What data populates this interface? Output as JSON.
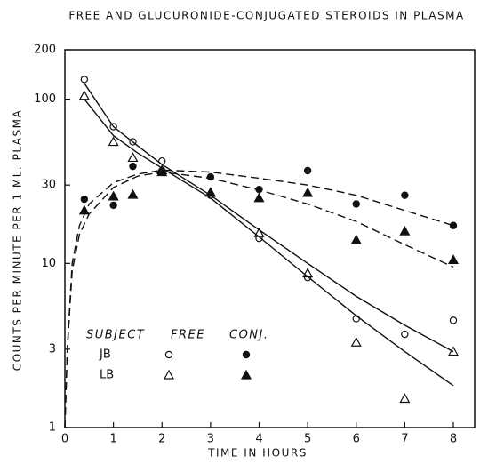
{
  "chart_data": {
    "type": "scatter",
    "title": "FREE AND GLUCURONIDE-CONJUGATED STEROIDS IN PLASMA",
    "xlabel": "TIME IN HOURS",
    "ylabel": "COUNTS PER MINUTE PER 1 ML. PLASMA",
    "xlim": [
      0,
      8
    ],
    "xticks": [
      0,
      1,
      2,
      3,
      4,
      5,
      6,
      7,
      8
    ],
    "ylim": [
      1,
      200
    ],
    "yticks": [
      1,
      3,
      10,
      30,
      100,
      200
    ],
    "log_y": true,
    "color": "#111111",
    "legend": {
      "header": [
        "SUBJECT",
        "FREE",
        "CONJ."
      ],
      "subjects": [
        "JB",
        "LB"
      ]
    },
    "series": [
      {
        "kind": "points",
        "marker": "circle-open",
        "subject": 0,
        "x": [
          0.4,
          1.0,
          1.4,
          2.0,
          3.0,
          4.0,
          5.0,
          6.0,
          7.0,
          8.0
        ],
        "values": [
          132,
          68,
          55,
          42,
          26,
          14.2,
          8.2,
          4.6,
          3.7,
          4.5
        ]
      },
      {
        "kind": "points",
        "marker": "triangle-open",
        "subject": 1,
        "x": [
          0.4,
          1.0,
          1.4,
          2.0,
          3.0,
          4.0,
          5.0,
          6.0,
          7.0,
          8.0
        ],
        "values": [
          105,
          55,
          44,
          37,
          27,
          15.3,
          8.7,
          3.3,
          1.5,
          2.9
        ]
      },
      {
        "kind": "points",
        "marker": "circle-filled",
        "subject": 0,
        "x": [
          0.4,
          1.0,
          1.4,
          2.0,
          3.0,
          4.0,
          5.0,
          6.0,
          7.0,
          8.0
        ],
        "values": [
          24.6,
          22.6,
          39,
          36.7,
          33.6,
          28.2,
          36.7,
          23,
          26,
          17
        ]
      },
      {
        "kind": "points",
        "marker": "triangle-filled",
        "subject": 1,
        "x": [
          0.4,
          1.0,
          1.4,
          2.0,
          3.0,
          4.0,
          5.0,
          6.0,
          7.0,
          8.0
        ],
        "values": [
          21,
          25.6,
          26.2,
          36,
          27,
          25,
          26.9,
          13.9,
          15.7,
          10.5
        ]
      },
      {
        "kind": "curve",
        "style": "solid",
        "x": [
          0.4,
          1.0,
          1.5,
          2.0,
          3.0,
          4.0,
          5.0,
          6.0,
          7.0,
          8.0
        ],
        "values": [
          125,
          68,
          52,
          40,
          26,
          16,
          10,
          6.3,
          4.2,
          2.9
        ]
      },
      {
        "kind": "curve",
        "style": "solid",
        "x": [
          0.4,
          1.0,
          1.5,
          2.0,
          3.0,
          4.0,
          5.0,
          6.0,
          7.0,
          8.0
        ],
        "values": [
          100,
          60,
          47,
          38,
          25,
          14.5,
          8.3,
          4.8,
          2.9,
          1.8
        ]
      },
      {
        "kind": "curve",
        "style": "dashed",
        "x": [
          0,
          0.05,
          0.15,
          0.3,
          0.5,
          1.0,
          1.5,
          2.0,
          3.0,
          4.0,
          5.0,
          6.0,
          7.0,
          8.0
        ],
        "values": [
          1,
          3,
          10,
          17,
          23,
          31,
          35,
          37,
          36,
          33,
          30,
          26,
          21,
          17
        ]
      },
      {
        "kind": "curve",
        "style": "dashed",
        "x": [
          0,
          0.05,
          0.15,
          0.3,
          0.5,
          1.0,
          1.5,
          2.0,
          3.0,
          4.0,
          5.0,
          6.0,
          7.0,
          8.0
        ],
        "values": [
          1,
          3,
          9,
          15,
          20,
          29,
          34,
          36,
          33,
          28,
          23,
          18,
          13,
          9.5
        ]
      }
    ]
  }
}
